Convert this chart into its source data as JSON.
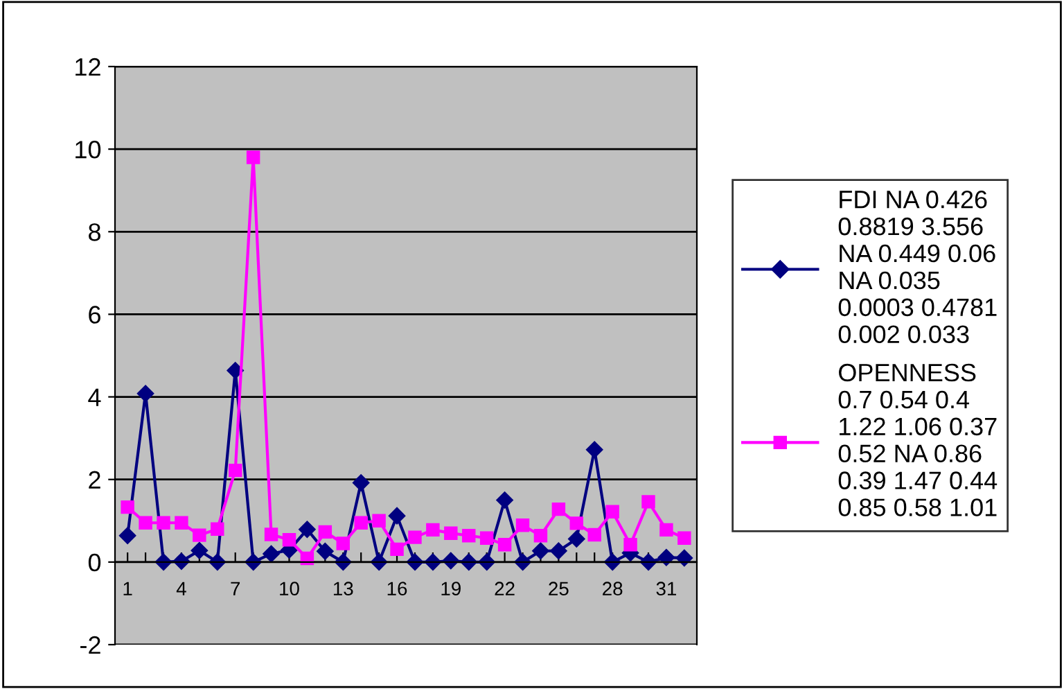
{
  "chart_data": {
    "type": "line",
    "categories": [
      "1",
      null,
      null,
      "4",
      null,
      null,
      "7",
      null,
      null,
      "10",
      null,
      null,
      "13",
      null,
      null,
      "16",
      null,
      null,
      "19",
      null,
      null,
      "22",
      null,
      null,
      "25",
      null,
      null,
      "28",
      null,
      null,
      "31",
      null
    ],
    "series": [
      {
        "name": "FDI NA 0.426\n0.8819 3.556\nNA 0.449 0.06\nNA 0.035\n0.0003 0.4781\n0.002 0.033",
        "color": "#000080",
        "marker": "diamond",
        "values": [
          0.64,
          4.08,
          0,
          0.02,
          0.28,
          0,
          4.64,
          0,
          0.2,
          0.29,
          0.79,
          0.26,
          0,
          1.92,
          0,
          1.12,
          0,
          0,
          0.03,
          0,
          0,
          1.5,
          0,
          0.27,
          0.27,
          0.56,
          2.72,
          0,
          0.22,
          0,
          0.11,
          0.1
        ]
      },
      {
        "name": "OPENNESS\n0.7 0.54 0.4\n1.22 1.06 0.37\n0.52 NA 0.86\n0.39 1.47 0.44\n0.85 0.58 1.01",
        "color": "#ff00ff",
        "marker": "square",
        "values": [
          1.33,
          0.95,
          0.95,
          0.95,
          0.65,
          0.8,
          2.22,
          9.8,
          0.67,
          0.54,
          0.09,
          0.73,
          0.45,
          0.95,
          1.0,
          0.31,
          0.6,
          0.78,
          0.7,
          0.64,
          0.58,
          0.42,
          0.89,
          0.64,
          1.28,
          0.94,
          0.66,
          1.22,
          0.42,
          1.46,
          0.78,
          0.58
        ]
      }
    ],
    "ylim": [
      -2,
      12
    ],
    "yticks": [
      -2,
      0,
      2,
      4,
      6,
      8,
      10,
      12
    ],
    "grid": "y",
    "legend": "right",
    "line_style": "solid"
  }
}
